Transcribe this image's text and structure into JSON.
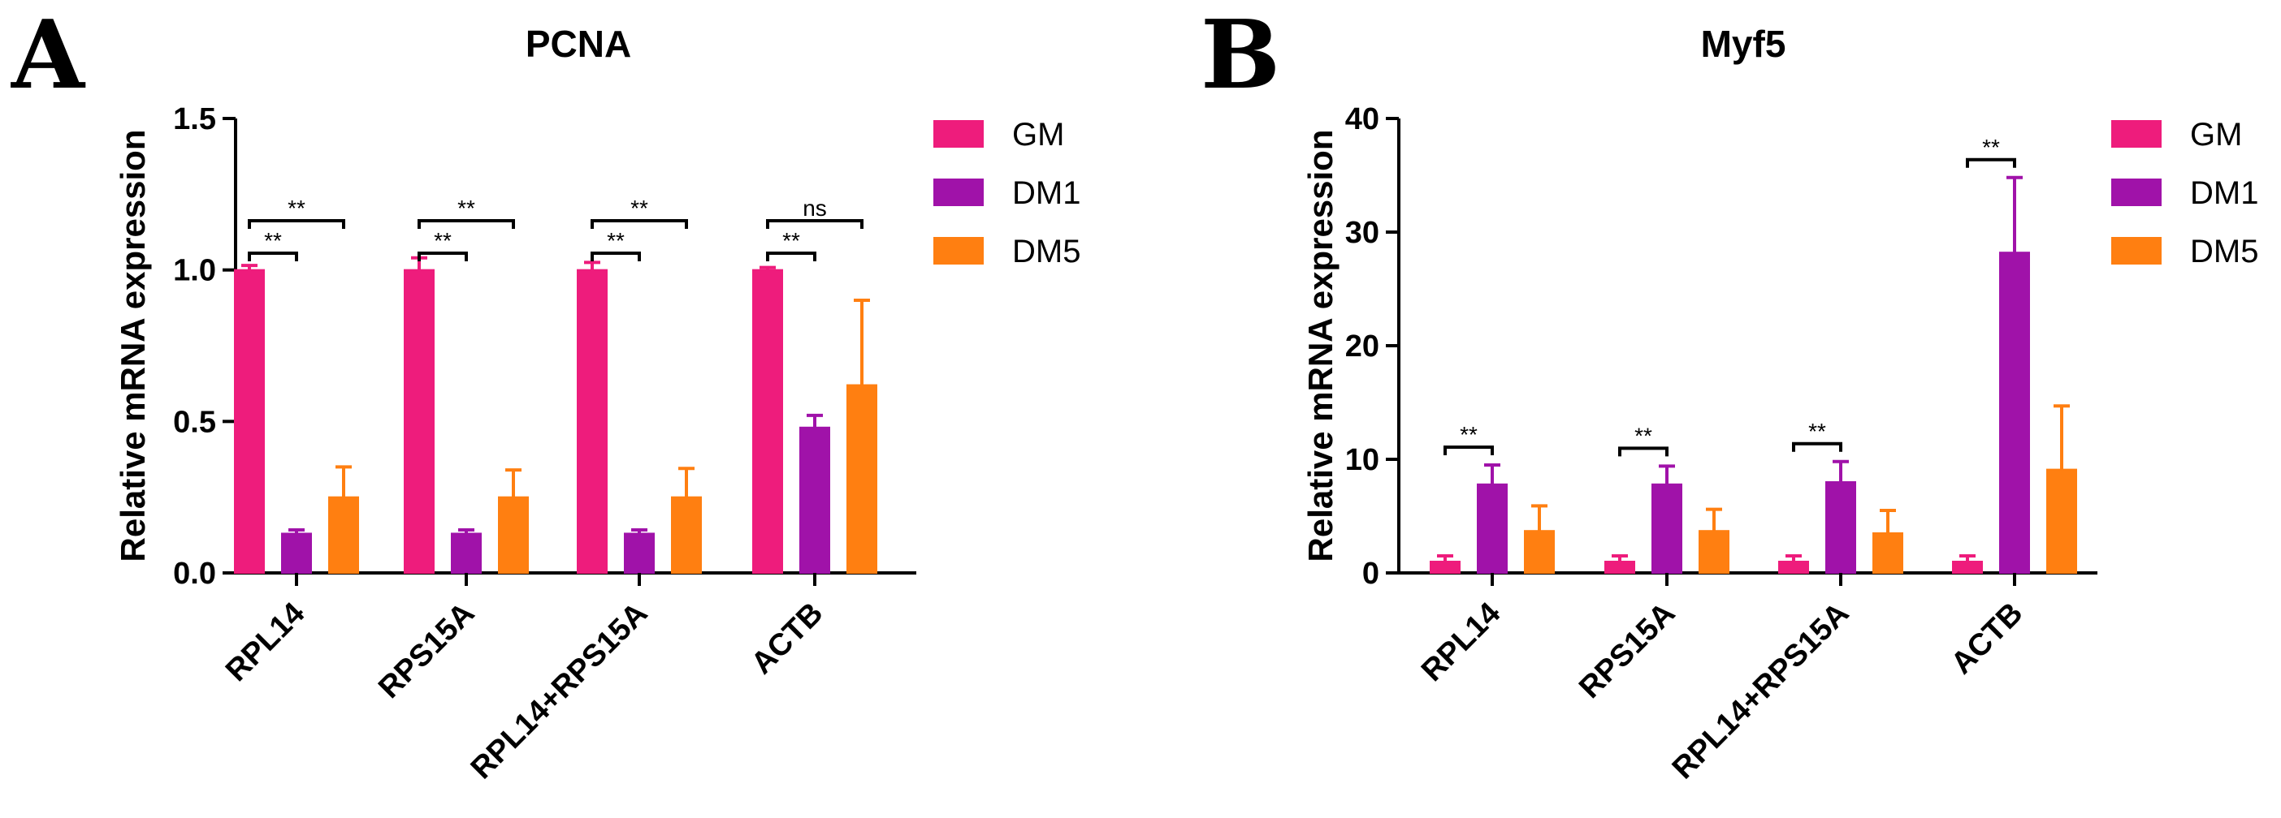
{
  "chart_data": [
    {
      "type": "bar",
      "panel": "A",
      "title": "PCNA",
      "ylabel": "Relative mRNA expression",
      "xlabel": "",
      "ylim": [
        0,
        1.5
      ],
      "yticks": [
        "0.0",
        "0.5",
        "1.0",
        "1.5"
      ],
      "ytick_values": [
        0,
        0.5,
        1.0,
        1.5
      ],
      "categories": [
        "RPL14",
        "RPS15A",
        "RPL14+RPS15A",
        "ACTB"
      ],
      "series": [
        {
          "name": "GM",
          "color": "#EE1C7C",
          "values": [
            1.0,
            1.0,
            1.0,
            1.0
          ],
          "errors": [
            0.015,
            0.04,
            0.025,
            0.008
          ]
        },
        {
          "name": "DM1",
          "color": "#A012A9",
          "values": [
            0.13,
            0.13,
            0.13,
            0.48
          ],
          "errors": [
            0.012,
            0.012,
            0.012,
            0.04
          ]
        },
        {
          "name": "DM5",
          "color": "#FF7F11",
          "values": [
            0.25,
            0.25,
            0.25,
            0.62
          ],
          "errors": [
            0.1,
            0.09,
            0.095,
            0.28
          ]
        }
      ],
      "significance": [
        {
          "category": 0,
          "from": 0,
          "to": 1,
          "label": "**"
        },
        {
          "category": 0,
          "from": 0,
          "to": 2,
          "label": "**"
        },
        {
          "category": 1,
          "from": 0,
          "to": 1,
          "label": "**"
        },
        {
          "category": 1,
          "from": 0,
          "to": 2,
          "label": "**"
        },
        {
          "category": 2,
          "from": 0,
          "to": 1,
          "label": "**"
        },
        {
          "category": 2,
          "from": 0,
          "to": 2,
          "label": "**"
        },
        {
          "category": 3,
          "from": 0,
          "to": 1,
          "label": "**"
        },
        {
          "category": 3,
          "from": 0,
          "to": 2,
          "label": "ns"
        }
      ],
      "legend_position": "top-right"
    },
    {
      "type": "bar",
      "panel": "B",
      "title": "Myf5",
      "ylabel": "Relative mRNA expression",
      "xlabel": "",
      "ylim": [
        0,
        40
      ],
      "yticks": [
        "0",
        "10",
        "20",
        "30",
        "40"
      ],
      "ytick_values": [
        0,
        10,
        20,
        30,
        40
      ],
      "categories": [
        "RPL14",
        "RPS15A",
        "RPL14+RPS15A",
        "ACTB"
      ],
      "series": [
        {
          "name": "GM",
          "color": "#EE1C7C",
          "values": [
            1.0,
            1.0,
            1.0,
            1.0
          ],
          "errors": [
            0.5,
            0.5,
            0.5,
            0.5
          ]
        },
        {
          "name": "DM1",
          "color": "#A012A9",
          "values": [
            7.8,
            7.8,
            8.0,
            28.2
          ],
          "errors": [
            1.7,
            1.6,
            1.8,
            6.6
          ]
        },
        {
          "name": "DM5",
          "color": "#FF7F11",
          "values": [
            3.7,
            3.7,
            3.5,
            9.1
          ],
          "errors": [
            2.2,
            1.9,
            2.0,
            5.6
          ]
        }
      ],
      "significance": [
        {
          "category": 0,
          "from": 0,
          "to": 1,
          "label": "**"
        },
        {
          "category": 1,
          "from": 0,
          "to": 1,
          "label": "**"
        },
        {
          "category": 2,
          "from": 0,
          "to": 1,
          "label": "**"
        },
        {
          "category": 3,
          "from": 0,
          "to": 1,
          "label": "**"
        }
      ],
      "legend_position": "top-right"
    }
  ]
}
